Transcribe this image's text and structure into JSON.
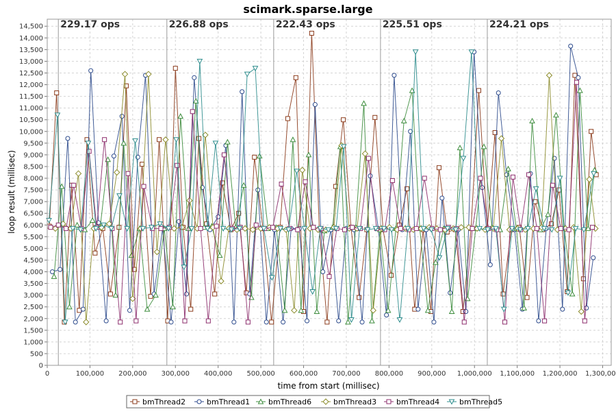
{
  "chart_data": {
    "type": "line",
    "title": "scimark.sparse.large",
    "xlabel": "time from start (millisec)",
    "ylabel": "loop result (millisec)",
    "xlim": [
      0,
      1320000
    ],
    "ylim": [
      0,
      14800
    ],
    "x_ticks": [
      {
        "v": 0,
        "label": "0"
      },
      {
        "v": 100000,
        "label": "100,000"
      },
      {
        "v": 200000,
        "label": "200,000"
      },
      {
        "v": 300000,
        "label": "300,000"
      },
      {
        "v": 400000,
        "label": "400,000"
      },
      {
        "v": 500000,
        "label": "500,000"
      },
      {
        "v": 600000,
        "label": "600,000"
      },
      {
        "v": 700000,
        "label": "700,000"
      },
      {
        "v": 800000,
        "label": "800,000"
      },
      {
        "v": 900000,
        "label": "900,000"
      },
      {
        "v": 1000000,
        "label": "1,000,000"
      },
      {
        "v": 1100000,
        "label": "1,100,000"
      },
      {
        "v": 1200000,
        "label": "1,200,000"
      },
      {
        "v": 1300000,
        "label": "1,300,000"
      }
    ],
    "y_ticks": [
      {
        "v": 0,
        "label": "0"
      },
      {
        "v": 500,
        "label": "500"
      },
      {
        "v": 1000,
        "label": "1,000"
      },
      {
        "v": 1500,
        "label": "1,500"
      },
      {
        "v": 2000,
        "label": "2,000"
      },
      {
        "v": 2500,
        "label": "2,500"
      },
      {
        "v": 3000,
        "label": "3,000"
      },
      {
        "v": 3500,
        "label": "3,500"
      },
      {
        "v": 4000,
        "label": "4,000"
      },
      {
        "v": 4500,
        "label": "4,500"
      },
      {
        "v": 5000,
        "label": "5,000"
      },
      {
        "v": 5500,
        "label": "5,500"
      },
      {
        "v": 6000,
        "label": "6,000"
      },
      {
        "v": 6500,
        "label": "6,500"
      },
      {
        "v": 7000,
        "label": "7,000"
      },
      {
        "v": 7500,
        "label": "7,500"
      },
      {
        "v": 8000,
        "label": "8,000"
      },
      {
        "v": 8500,
        "label": "8,500"
      },
      {
        "v": 9000,
        "label": "9,000"
      },
      {
        "v": 9500,
        "label": "9,500"
      },
      {
        "v": 10000,
        "label": "10,000"
      },
      {
        "v": 10500,
        "label": "10,500"
      },
      {
        "v": 11000,
        "label": "11,000"
      },
      {
        "v": 11500,
        "label": "11,500"
      },
      {
        "v": 12000,
        "label": "12,000"
      },
      {
        "v": 12500,
        "label": "12,500"
      },
      {
        "v": 13000,
        "label": "13,000"
      },
      {
        "v": 13500,
        "label": "13,500"
      },
      {
        "v": 14000,
        "label": "14,000"
      },
      {
        "v": 14500,
        "label": "14,500"
      }
    ],
    "grid": true,
    "legend_position": "bottom",
    "iterations": [
      {
        "label": "229.17 ops",
        "start": 26000
      },
      {
        "label": "226.88 ops",
        "start": 280000
      },
      {
        "label": "222.43 ops",
        "start": 530000
      },
      {
        "label": "225.51 ops",
        "start": 780000
      },
      {
        "label": "224.21 ops",
        "start": 1030000
      }
    ],
    "series": [
      {
        "name": "bmThread2",
        "color": "#8b3a1a",
        "marker": "square",
        "x": [
          5000,
          22000,
          40000,
          57000,
          75000,
          93000,
          112000,
          130000,
          148000,
          168000,
          185000,
          204000,
          222000,
          242000,
          262000,
          282000,
          300000,
          318000,
          336000,
          355000,
          373000,
          392000,
          410000,
          430000,
          448000,
          466000,
          485000,
          505000,
          525000,
          545000,
          563000,
          582000,
          600000,
          619000,
          637000,
          655000,
          675000,
          693000,
          711000,
          730000,
          748000,
          767000,
          786000,
          805000,
          824000,
          842000,
          860000,
          880000,
          898000,
          917000,
          936000,
          955000,
          973000,
          992000,
          1010000,
          1030000,
          1048000,
          1067000,
          1086000,
          1105000,
          1123000,
          1142000,
          1160000,
          1180000,
          1198000,
          1217000,
          1235000,
          1255000,
          1273000,
          1285000
        ],
        "y": [
          5950,
          11650,
          1850,
          7700,
          2350,
          9650,
          4800,
          5850,
          3050,
          5900,
          11950,
          4100,
          8600,
          2950,
          9650,
          1900,
          12700,
          5900,
          2400,
          9700,
          6050,
          3050,
          7800,
          5800,
          6500,
          3100,
          8900,
          5850,
          1850,
          5900,
          10550,
          12300,
          2300,
          14200,
          5800,
          1850,
          7650,
          10500,
          5900,
          2900,
          5800,
          10600,
          5800,
          3850,
          6000,
          7550,
          2400,
          5800,
          2300,
          8450,
          5700,
          5800,
          2300,
          5850,
          11750,
          5850,
          9950,
          3050,
          5800,
          5900,
          2900,
          7000,
          5800,
          6050,
          7500,
          3150,
          12400,
          3700,
          10000,
          8150
        ]
      },
      {
        "name": "bmThread1",
        "color": "#2c4a8c",
        "marker": "circle",
        "x": [
          12000,
          30000,
          48000,
          66000,
          84000,
          102000,
          120000,
          138000,
          156000,
          175000,
          193000,
          212000,
          230000,
          250000,
          270000,
          290000,
          308000,
          326000,
          344000,
          363000,
          381000,
          400000,
          418000,
          437000,
          456000,
          474000,
          493000,
          513000,
          532000,
          552000,
          571000,
          590000,
          608000,
          627000,
          645000,
          664000,
          682000,
          700000,
          718000,
          737000,
          756000,
          775000,
          794000,
          812000,
          831000,
          850000,
          868000,
          887000,
          905000,
          924000,
          943000,
          962000,
          980000,
          999000,
          1018000,
          1037000,
          1056000,
          1075000,
          1094000,
          1112000,
          1131000,
          1150000,
          1168000,
          1187000,
          1206000,
          1225000,
          1243000,
          1262000,
          1278000
        ],
        "y": [
          4000,
          4100,
          9700,
          1850,
          2400,
          12600,
          6100,
          1900,
          8950,
          10650,
          2350,
          8900,
          12400,
          3050,
          5850,
          1850,
          6150,
          3050,
          12300,
          7600,
          5800,
          6350,
          9400,
          1850,
          11700,
          3050,
          7500,
          1850,
          5800,
          1850,
          5850,
          5850,
          1900,
          11150,
          4000,
          5800,
          1900,
          5850,
          5800,
          1850,
          8100,
          5850,
          2150,
          12400,
          5800,
          10000,
          2400,
          5800,
          1850,
          7150,
          3100,
          5800,
          2300,
          13400,
          7600,
          4300,
          11650,
          8150,
          5800,
          2400,
          8200,
          1900,
          5850,
          8850,
          2400,
          13650,
          12300,
          2450,
          4600
        ]
      },
      {
        "name": "bmThread6",
        "color": "#3c8c3c",
        "marker": "triangle",
        "x": [
          16000,
          34000,
          52000,
          70000,
          88000,
          106000,
          124000,
          142000,
          160000,
          179000,
          197000,
          216000,
          234000,
          254000,
          274000,
          294000,
          312000,
          330000,
          348000,
          367000,
          385000,
          404000,
          422000,
          441000,
          460000,
          478000,
          497000,
          517000,
          536000,
          556000,
          575000,
          594000,
          612000,
          631000,
          649000,
          668000,
          686000,
          704000,
          722000,
          741000,
          760000,
          779000,
          798000,
          816000,
          835000,
          854000,
          872000,
          891000,
          909000,
          928000,
          947000,
          966000,
          984000,
          1003000,
          1022000,
          1041000,
          1060000,
          1079000,
          1098000,
          1116000,
          1135000,
          1154000,
          1172000,
          1191000,
          1210000,
          1229000,
          1247000,
          1266000,
          1281000
        ],
        "y": [
          3800,
          7650,
          2500,
          6000,
          5800,
          6200,
          5900,
          8800,
          3000,
          9500,
          4700,
          5850,
          2400,
          3000,
          5850,
          2500,
          10650,
          5850,
          11300,
          5900,
          5950,
          4700,
          9550,
          5900,
          7700,
          2900,
          8950,
          5850,
          5900,
          2350,
          9650,
          2350,
          9000,
          2300,
          5750,
          5900,
          9350,
          1850,
          5900,
          11200,
          1900,
          5800,
          2350,
          5850,
          10450,
          11750,
          5850,
          2350,
          4400,
          5850,
          2300,
          9300,
          2850,
          5850,
          9350,
          5900,
          5800,
          8400,
          5850,
          2450,
          10450,
          5800,
          6450,
          10700,
          5850,
          3050,
          11750,
          5850,
          8350
        ]
      },
      {
        "name": "bmThread3",
        "color": "#8c8c2c",
        "marker": "diamond",
        "x": [
          19000,
          37000,
          55000,
          73000,
          91000,
          109000,
          127000,
          145000,
          163000,
          182000,
          200000,
          219000,
          237000,
          257000,
          277000,
          297000,
          315000,
          333000,
          351000,
          370000,
          388000,
          407000,
          425000,
          444000,
          463000,
          481000,
          500000,
          520000,
          539000,
          559000,
          578000,
          597000,
          615000,
          634000,
          652000,
          671000,
          689000,
          707000,
          725000,
          744000,
          763000,
          782000,
          801000,
          819000,
          838000,
          857000,
          875000,
          894000,
          912000,
          931000,
          950000,
          969000,
          987000,
          1006000,
          1025000,
          1044000,
          1063000,
          1082000,
          1101000,
          1119000,
          1138000,
          1157000,
          1175000,
          1194000,
          1213000,
          1232000,
          1250000,
          1269000,
          1283000
        ],
        "y": [
          5850,
          6050,
          5850,
          8200,
          1850,
          5850,
          5900,
          6050,
          8250,
          12450,
          2850,
          5850,
          12450,
          4850,
          9650,
          5850,
          5900,
          7050,
          5850,
          9850,
          5900,
          3600,
          5850,
          5800,
          5850,
          5800,
          5850,
          5900,
          5850,
          5800,
          2350,
          8350,
          5850,
          5800,
          5800,
          5900,
          9400,
          5850,
          5850,
          9050,
          2350,
          5850,
          5900,
          5800,
          5850,
          5800,
          5850,
          5900,
          5850,
          5800,
          5850,
          5900,
          5900,
          5850,
          5800,
          5850,
          9700,
          5800,
          5850,
          5800,
          5850,
          5900,
          12400,
          5800,
          5850,
          5900,
          2300,
          7950,
          5850
        ]
      },
      {
        "name": "bmThread4",
        "color": "#8c2c6c",
        "marker": "square",
        "x": [
          8000,
          26000,
          44000,
          62000,
          80000,
          98000,
          116000,
          134000,
          152000,
          171000,
          189000,
          208000,
          226000,
          246000,
          266000,
          286000,
          304000,
          322000,
          340000,
          359000,
          377000,
          396000,
          414000,
          433000,
          452000,
          470000,
          489000,
          509000,
          528000,
          548000,
          567000,
          586000,
          604000,
          623000,
          641000,
          660000,
          678000,
          696000,
          714000,
          733000,
          752000,
          771000,
          790000,
          808000,
          827000,
          846000,
          864000,
          883000,
          901000,
          920000,
          939000,
          958000,
          976000,
          995000,
          1014000,
          1033000,
          1052000,
          1071000,
          1090000,
          1108000,
          1127000,
          1146000,
          1164000,
          1183000,
          1202000,
          1221000,
          1239000,
          1258000,
          1276000
        ],
        "y": [
          5900,
          6000,
          5850,
          7700,
          5850,
          9150,
          5900,
          9650,
          5850,
          1850,
          8200,
          1900,
          7650,
          5850,
          5850,
          5900,
          8550,
          1900,
          10850,
          5850,
          1900,
          5950,
          9000,
          5850,
          5900,
          1850,
          6000,
          5850,
          5900,
          7750,
          5850,
          5800,
          7850,
          5900,
          5850,
          3800,
          5850,
          5800,
          5900,
          5850,
          8850,
          5850,
          5800,
          7900,
          5850,
          5800,
          5850,
          8000,
          5850,
          5800,
          5900,
          5850,
          1850,
          5850,
          8000,
          5850,
          5800,
          1850,
          8050,
          5800,
          8150,
          5850,
          1900,
          7700,
          5850,
          5800,
          12100,
          1900,
          5900
        ]
      },
      {
        "name": "bmThread5",
        "color": "#2c8c8c",
        "marker": "triangle-down",
        "x": [
          4000,
          24000,
          42000,
          60000,
          78000,
          96000,
          114000,
          132000,
          150000,
          169000,
          187000,
          206000,
          224000,
          244000,
          264000,
          284000,
          302000,
          320000,
          338000,
          357000,
          375000,
          394000,
          412000,
          431000,
          450000,
          468000,
          487000,
          507000,
          526000,
          546000,
          565000,
          584000,
          602000,
          621000,
          639000,
          658000,
          676000,
          694000,
          712000,
          731000,
          750000,
          769000,
          788000,
          806000,
          825000,
          844000,
          862000,
          881000,
          899000,
          918000,
          937000,
          956000,
          974000,
          993000,
          1012000,
          1031000,
          1050000,
          1069000,
          1088000,
          1107000,
          1125000,
          1144000,
          1163000,
          1181000,
          1200000,
          1219000,
          1237000,
          1256000,
          1279000
        ],
        "y": [
          6200,
          10700,
          1850,
          5850,
          5800,
          9500,
          5850,
          6000,
          5850,
          7250,
          5850,
          9600,
          5850,
          5900,
          6050,
          5850,
          9650,
          4200,
          5850,
          13000,
          5850,
          9500,
          5850,
          5800,
          5850,
          12450,
          12700,
          5850,
          3750,
          5850,
          5800,
          8300,
          5850,
          3150,
          5850,
          5800,
          5850,
          9350,
          1950,
          5850,
          5800,
          5850,
          5850,
          5800,
          1950,
          5850,
          13400,
          5850,
          5800,
          4600,
          5850,
          5800,
          8850,
          13400,
          5850,
          5800,
          5850,
          2400,
          5850,
          5800,
          5850,
          7550,
          5850,
          5800,
          8000,
          3100,
          5850,
          5800,
          8200
        ]
      }
    ]
  }
}
